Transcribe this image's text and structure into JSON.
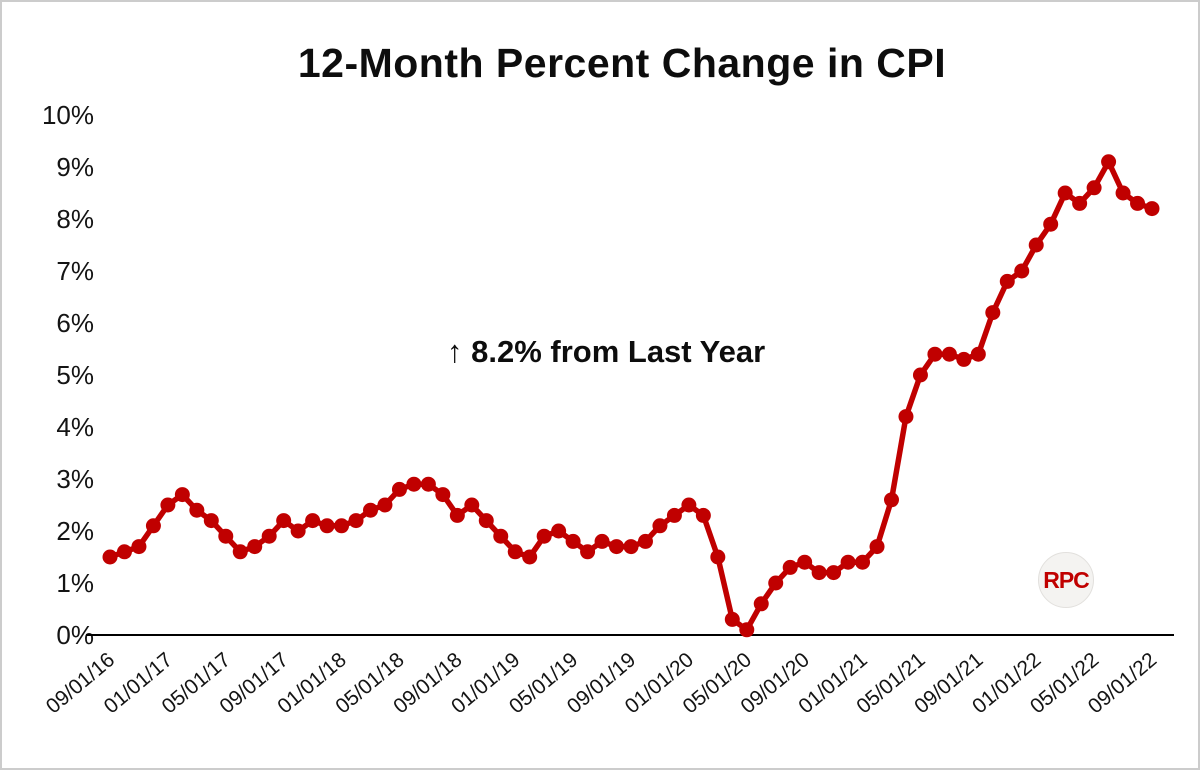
{
  "page": {
    "logo_label": "RPC"
  },
  "chart_data": {
    "type": "line",
    "title": "12-Month Percent Change in CPI",
    "annotation": "↑ 8.2% from Last Year",
    "series_name": "CPI 12-month percent change",
    "x_start": "09/01/16",
    "x_interval": "monthly",
    "tick_every_n_points": 4,
    "x_tick_labels": [
      "09/01/16",
      "01/01/17",
      "05/01/17",
      "09/01/17",
      "01/01/18",
      "05/01/18",
      "09/01/18",
      "01/01/19",
      "05/01/19",
      "09/01/19",
      "01/01/20",
      "05/01/20",
      "09/01/20",
      "01/01/21",
      "05/01/21",
      "09/01/21",
      "01/01/22",
      "05/01/22",
      "09/01/22"
    ],
    "values": [
      1.5,
      1.6,
      1.7,
      2.1,
      2.5,
      2.7,
      2.4,
      2.2,
      1.9,
      1.6,
      1.7,
      1.9,
      2.2,
      2.0,
      2.2,
      2.1,
      2.1,
      2.2,
      2.4,
      2.5,
      2.8,
      2.9,
      2.9,
      2.7,
      2.3,
      2.5,
      2.2,
      1.9,
      1.6,
      1.5,
      1.9,
      2.0,
      1.8,
      1.6,
      1.8,
      1.7,
      1.7,
      1.8,
      2.1,
      2.3,
      2.5,
      2.3,
      1.5,
      0.3,
      0.1,
      0.6,
      1.0,
      1.3,
      1.4,
      1.2,
      1.2,
      1.4,
      1.4,
      1.7,
      2.6,
      4.2,
      5.0,
      5.4,
      5.4,
      5.3,
      5.4,
      6.2,
      6.8,
      7.0,
      7.5,
      7.9,
      8.5,
      8.3,
      8.6,
      9.1,
      8.5,
      8.3,
      8.2
    ],
    "y_tick_labels": [
      "0%",
      "1%",
      "2%",
      "3%",
      "4%",
      "5%",
      "6%",
      "7%",
      "8%",
      "9%",
      "10%"
    ],
    "ylim": [
      0,
      10
    ],
    "line_color": "#c00000",
    "marker": "circle",
    "grid": false,
    "legend": "none"
  }
}
